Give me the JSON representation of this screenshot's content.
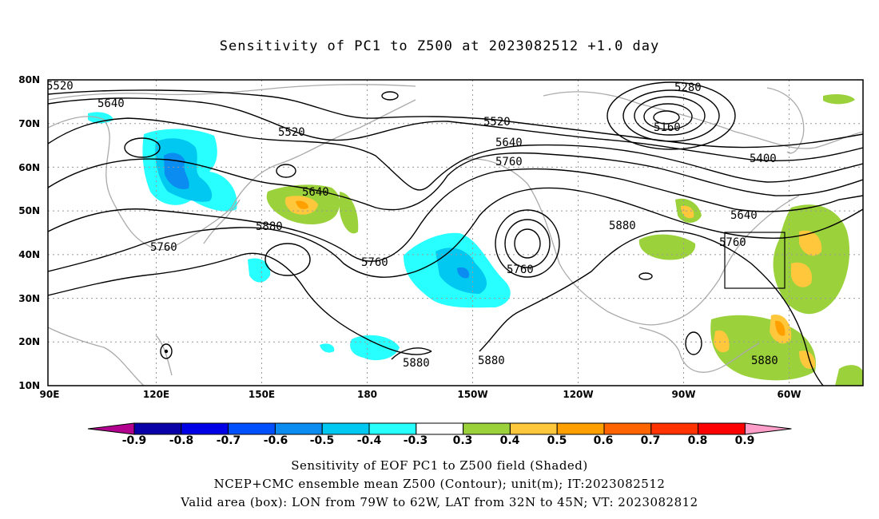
{
  "title": "Sensitivity of PC1 to Z500 at 2023082512 +1.0 day",
  "map": {
    "lon_ticks": [
      "90E",
      "120E",
      "150E",
      "180",
      "150W",
      "120W",
      "90W",
      "60W"
    ],
    "lat_ticks": [
      "80N",
      "70N",
      "60N",
      "50N",
      "40N",
      "30N",
      "20N",
      "10N"
    ],
    "contour_labels": [
      "5520",
      "5640",
      "5520",
      "5640",
      "5760",
      "5880",
      "5760",
      "5520",
      "5640",
      "5760",
      "5760",
      "5880",
      "5280",
      "5160",
      "5400",
      "5640",
      "5760",
      "5880",
      "5880",
      "5880"
    ],
    "valid_box": {
      "lon_from": "79W",
      "lon_to": "62W",
      "lat_from": "32N",
      "lat_to": "45N"
    },
    "colors": {
      "coast": "#aaaaaa",
      "contour": "#000000",
      "grid": "#999999"
    }
  },
  "colorbar": {
    "labels": [
      "-0.9",
      "-0.8",
      "-0.7",
      "-0.6",
      "-0.5",
      "-0.4",
      "-0.3",
      "0.3",
      "0.4",
      "0.5",
      "0.6",
      "0.7",
      "0.8",
      "0.9"
    ],
    "colors": [
      "#b2008f",
      "#0a00a8",
      "#0000e6",
      "#0050ff",
      "#0a8cf0",
      "#00c8f0",
      "#28ffff",
      "#ffffff",
      "#9bd23c",
      "#ffc83c",
      "#ffa000",
      "#ff6400",
      "#ff3200",
      "#ff0000",
      "#ff9ec8"
    ]
  },
  "captions": {
    "line1": "Sensitivity of EOF PC1 to Z500 field (Shaded)",
    "line2": "NCEP+CMC ensemble mean Z500 (Contour); unit(m); IT:2023082512",
    "line3": "Valid area (box): LON from 79W to 62W, LAT from 32N to 45N; VT: 2023082812"
  }
}
